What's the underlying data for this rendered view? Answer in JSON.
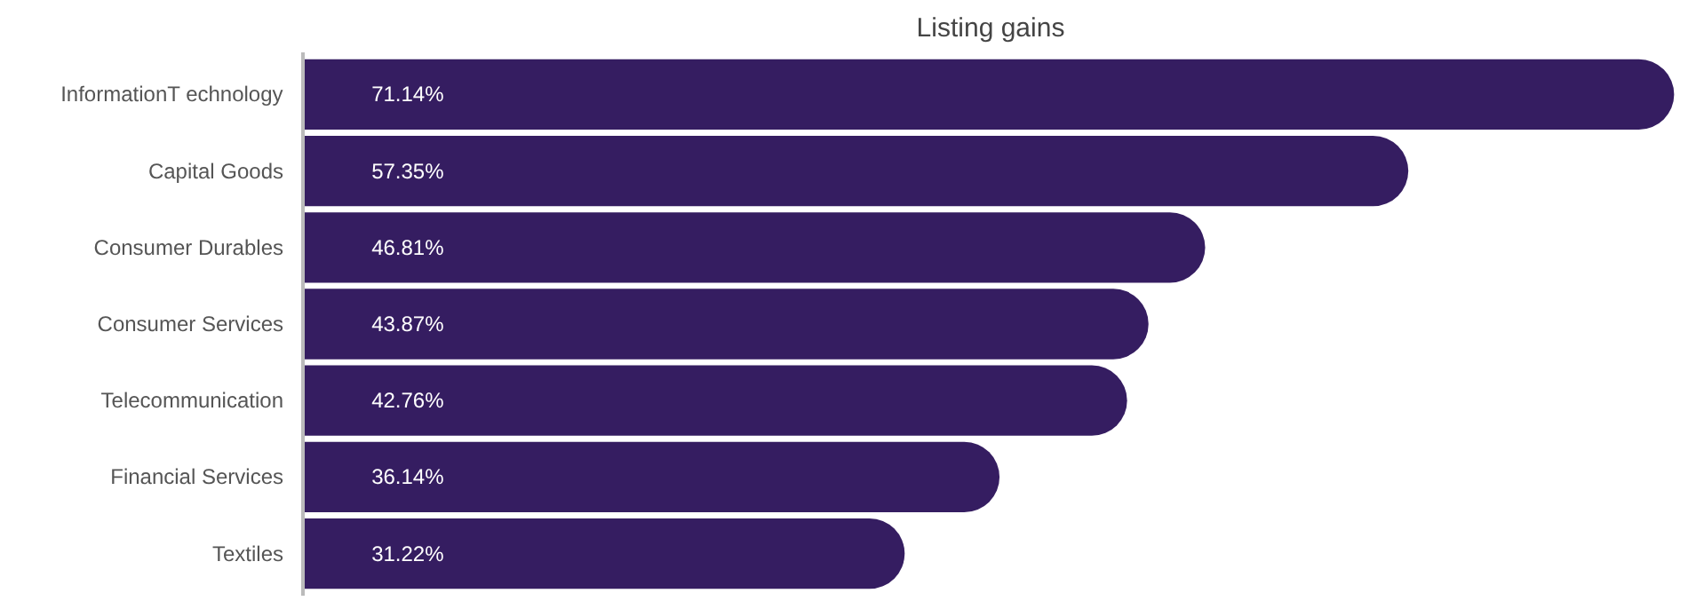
{
  "chart_data": {
    "type": "bar",
    "orientation": "horizontal",
    "title": "Listing gains",
    "categories": [
      "InformationT echnology",
      "Capital Goods",
      "Consumer Durables",
      "Consumer Services",
      "Telecommunication",
      "Financial Services",
      "Textiles"
    ],
    "values": [
      71.14,
      57.35,
      46.81,
      43.87,
      42.76,
      36.14,
      31.22
    ],
    "value_labels": [
      "71.14%",
      "57.35%",
      "46.81%",
      "43.87%",
      "42.76%",
      "36.14%",
      "31.22%"
    ],
    "color": "#351d61",
    "grid": false
  }
}
